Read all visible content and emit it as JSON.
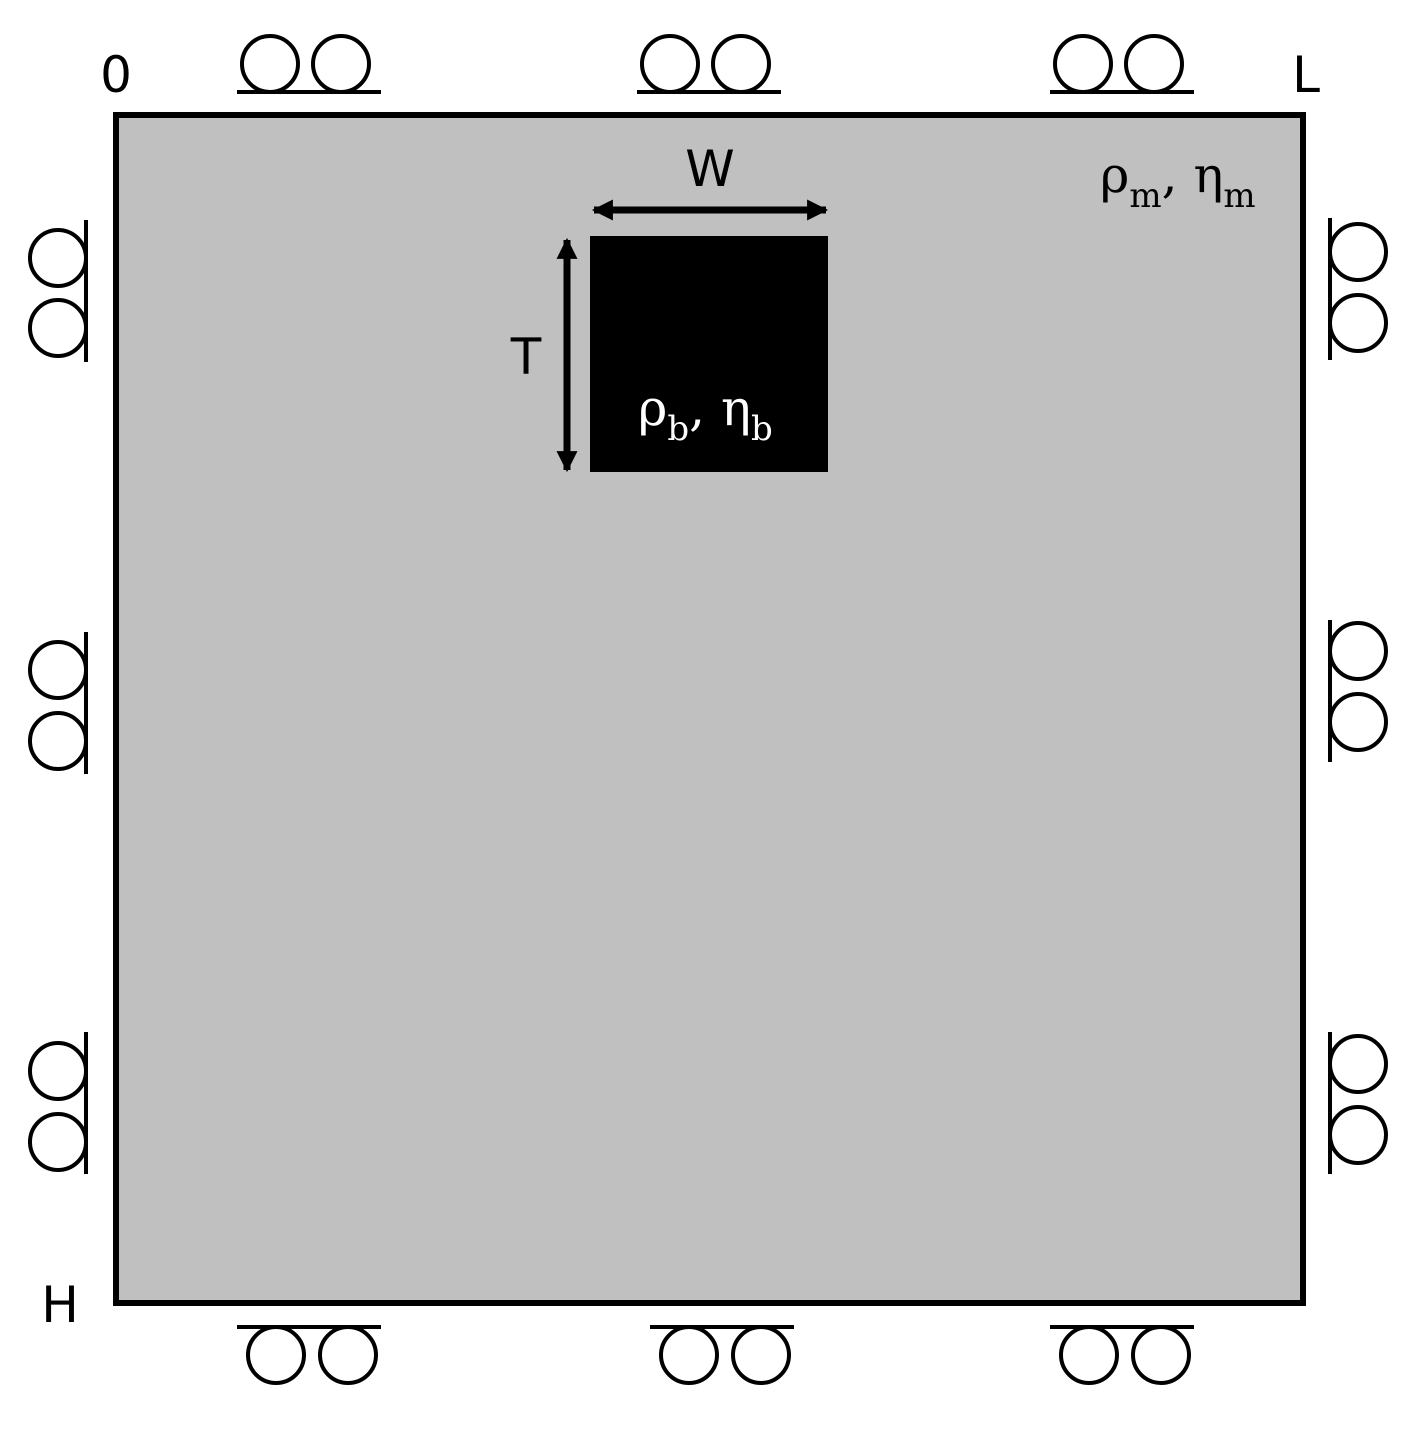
{
  "labels": {
    "origin": "0",
    "length": "L",
    "height": "H",
    "width": "W",
    "thickness": "T"
  },
  "matrix": {
    "rho": "ρ",
    "rho_sub": "m",
    "sep": ", ",
    "eta": "η",
    "eta_sub": "m"
  },
  "block": {
    "rho": "ρ",
    "rho_sub": "b",
    "sep": ", ",
    "eta": "η",
    "eta_sub": "b"
  },
  "colors": {
    "matrix_fill": "#c0c0c0",
    "block_fill": "#000000",
    "outline": "#000000",
    "block_text": "#ffffff"
  },
  "boundary_conditions": {
    "top": "rollers",
    "bottom": "rollers",
    "left": "rollers",
    "right": "rollers"
  }
}
